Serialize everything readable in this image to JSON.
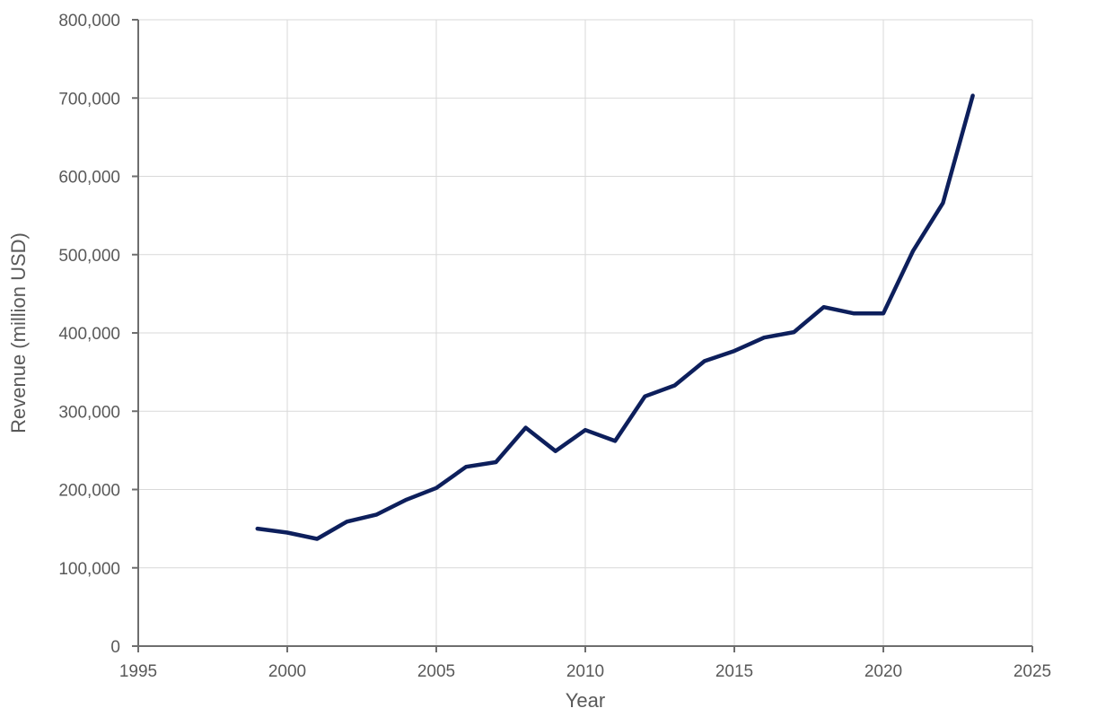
{
  "chart_data": {
    "type": "line",
    "title": "",
    "xlabel": "Year",
    "ylabel": "Revenue (million USD)",
    "xlim": [
      1995,
      2025
    ],
    "ylim": [
      0,
      800000
    ],
    "x_ticks": [
      1995,
      2000,
      2005,
      2010,
      2015,
      2020,
      2025
    ],
    "y_ticks": [
      0,
      100000,
      200000,
      300000,
      400000,
      500000,
      600000,
      700000,
      800000
    ],
    "x_tick_labels": [
      "1995",
      "2000",
      "2005",
      "2010",
      "2015",
      "2020",
      "2025"
    ],
    "y_tick_labels": [
      "0",
      "100,000",
      "200,000",
      "300,000",
      "400,000",
      "500,000",
      "600,000",
      "700,000",
      "800,000"
    ],
    "grid": true,
    "legend": "none",
    "series": [
      {
        "color": "#0d1f5c",
        "x": [
          1999,
          2000,
          2001,
          2002,
          2003,
          2004,
          2005,
          2006,
          2007,
          2008,
          2009,
          2010,
          2011,
          2012,
          2013,
          2014,
          2015,
          2016,
          2017,
          2018,
          2019,
          2020,
          2021,
          2022,
          2023
        ],
        "y": [
          150000,
          145000,
          137000,
          159000,
          168000,
          187000,
          202000,
          229000,
          235000,
          279000,
          249000,
          276000,
          262000,
          319000,
          333000,
          364000,
          377000,
          394000,
          401000,
          433000,
          425000,
          425000,
          505000,
          566000,
          703000
        ]
      }
    ]
  }
}
